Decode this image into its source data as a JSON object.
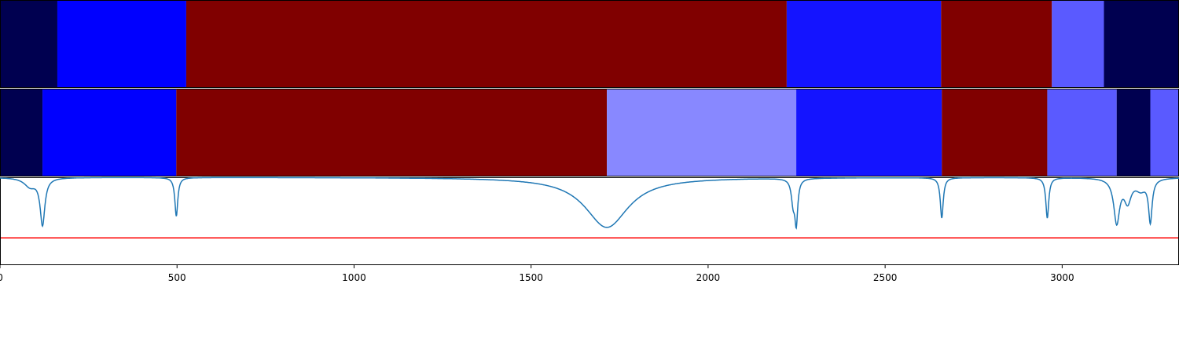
{
  "chart_data": {
    "type": "segmentation-timeline",
    "xlim": [
      0,
      3330
    ],
    "x_ticks": [
      {
        "value": 0,
        "label": "0"
      },
      {
        "value": 500,
        "label": "500"
      },
      {
        "value": 1000,
        "label": "1000"
      },
      {
        "value": 1500,
        "label": "1500"
      },
      {
        "value": 2000,
        "label": "2000"
      },
      {
        "value": 2500,
        "label": "2500"
      },
      {
        "value": 3000,
        "label": "3000"
      }
    ],
    "segment_rows": [
      {
        "segments": [
          {
            "start": 0,
            "end": 162,
            "color": "#000050"
          },
          {
            "start": 162,
            "end": 526,
            "color": "#0000ff"
          },
          {
            "start": 526,
            "end": 2222,
            "color": "#800000"
          },
          {
            "start": 2222,
            "end": 2658,
            "color": "#1414ff"
          },
          {
            "start": 2658,
            "end": 2971,
            "color": "#800000"
          },
          {
            "start": 2971,
            "end": 3118,
            "color": "#5a5aff"
          },
          {
            "start": 3118,
            "end": 3330,
            "color": "#000050"
          }
        ]
      },
      {
        "segments": [
          {
            "start": 0,
            "end": 120,
            "color": "#000050"
          },
          {
            "start": 120,
            "end": 498,
            "color": "#0000ff"
          },
          {
            "start": 498,
            "end": 1714,
            "color": "#800000"
          },
          {
            "start": 1714,
            "end": 2249,
            "color": "#8888ff"
          },
          {
            "start": 2249,
            "end": 2660,
            "color": "#1414ff"
          },
          {
            "start": 2660,
            "end": 2958,
            "color": "#800000"
          },
          {
            "start": 2958,
            "end": 3154,
            "color": "#5a5aff"
          },
          {
            "start": 3154,
            "end": 3249,
            "color": "#000050"
          },
          {
            "start": 3249,
            "end": 3330,
            "color": "#5a5aff"
          }
        ]
      }
    ],
    "line_plot": {
      "ylim": [
        0,
        1
      ],
      "threshold": 0.31,
      "threshold_color": "#ff0000",
      "line_color": "#1f77b4",
      "baseline": 1.0,
      "dips": [
        {
          "x": 120,
          "depth": 0.53,
          "width": 8
        },
        {
          "x": 85,
          "depth": 0.1,
          "width": 20
        },
        {
          "x": 498,
          "depth": 0.44,
          "width": 5
        },
        {
          "x": 1714,
          "depth": 0.57,
          "width": 75
        },
        {
          "x": 2249,
          "depth": 0.49,
          "width": 5
        },
        {
          "x": 2240,
          "depth": 0.25,
          "width": 6
        },
        {
          "x": 2660,
          "depth": 0.46,
          "width": 5
        },
        {
          "x": 2958,
          "depth": 0.46,
          "width": 5
        },
        {
          "x": 3154,
          "depth": 0.5,
          "width": 10
        },
        {
          "x": 3185,
          "depth": 0.25,
          "width": 12
        },
        {
          "x": 3222,
          "depth": 0.12,
          "width": 18
        },
        {
          "x": 3249,
          "depth": 0.48,
          "width": 6
        }
      ]
    }
  }
}
